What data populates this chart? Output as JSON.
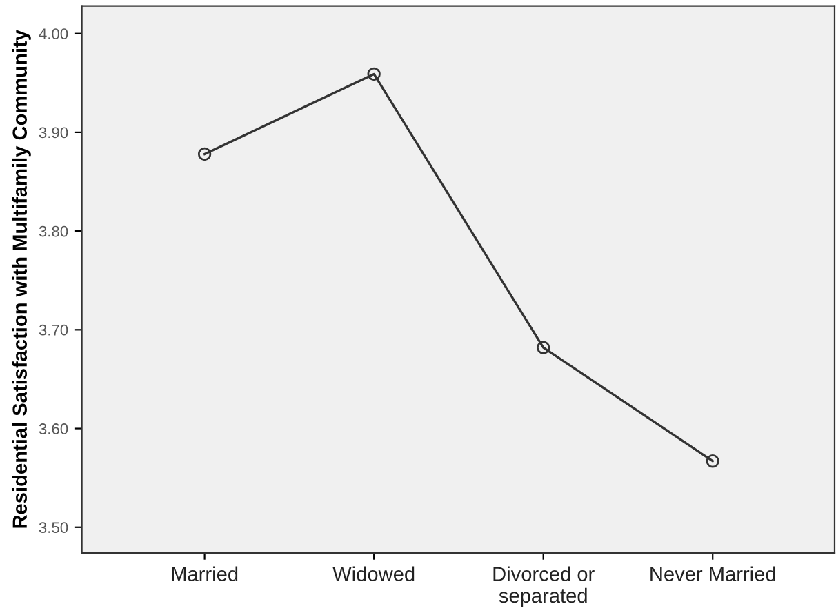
{
  "chart_data": {
    "type": "line",
    "ylabel": "Residential Satisfaction with Multifamily Community",
    "categories": [
      "Married",
      "Widowed",
      "Divorced or\nseparated",
      "Never Married"
    ],
    "series": [
      {
        "color": "#333333",
        "values": [
          3.878,
          3.959,
          3.682,
          3.567
        ]
      }
    ],
    "ylim": [
      3.474,
      4.028
    ],
    "yticks": [
      {
        "value": 3.5,
        "label": "3.50"
      },
      {
        "value": 3.6,
        "label": "3.60"
      },
      {
        "value": 3.7,
        "label": "3.70"
      },
      {
        "value": 3.8,
        "label": "3.80"
      },
      {
        "value": 3.9,
        "label": "3.90"
      },
      {
        "value": 4.0,
        "label": "4.00"
      }
    ],
    "marker": "circle",
    "line_style": "solid",
    "grid": false,
    "legend": false
  }
}
